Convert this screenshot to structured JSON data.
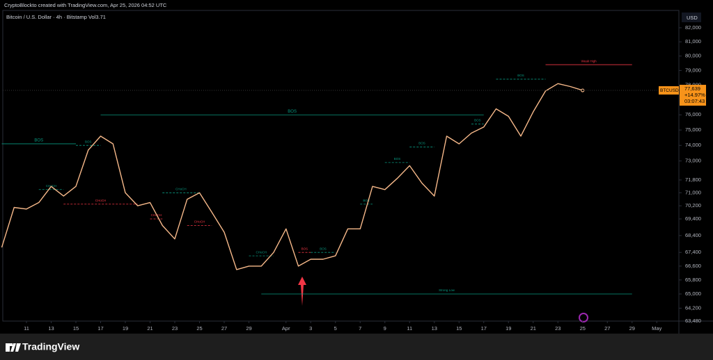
{
  "header": "CryptoBlockto created with TradingView.com, Apr 25, 2026 04:52 UTC",
  "brand": "TradingView",
  "chart_data": {
    "type": "line",
    "title": "Bitcoin / U.S. Dollar · 4h · Bitstamp  Vol3.71",
    "currency": "USD",
    "log_scale": true,
    "x": [
      "2026-03-09",
      "2026-03-10",
      "2026-03-11",
      "2026-03-12",
      "2026-03-13",
      "2026-03-14",
      "2026-03-15",
      "2026-03-16",
      "2026-03-17",
      "2026-03-18",
      "2026-03-19",
      "2026-03-20",
      "2026-03-21",
      "2026-03-22",
      "2026-03-23",
      "2026-03-24",
      "2026-03-25",
      "2026-03-26",
      "2026-03-27",
      "2026-03-28",
      "2026-03-29",
      "2026-03-30",
      "2026-03-31",
      "2026-04-01",
      "2026-04-02",
      "2026-04-03",
      "2026-04-04",
      "2026-04-05",
      "2026-04-06",
      "2026-04-07",
      "2026-04-08",
      "2026-04-09",
      "2026-04-10",
      "2026-04-11",
      "2026-04-12",
      "2026-04-13",
      "2026-04-14",
      "2026-04-15",
      "2026-04-16",
      "2026-04-17",
      "2026-04-18",
      "2026-04-19",
      "2026-04-20",
      "2026-04-21",
      "2026-04-22",
      "2026-04-23",
      "2026-04-24",
      "2026-04-25"
    ],
    "series": [
      {
        "name": "BTCUSD",
        "color": "#f7b98a",
        "values": [
          67700,
          70100,
          70000,
          70400,
          71400,
          70800,
          71400,
          73700,
          74600,
          74100,
          71000,
          70200,
          70400,
          69000,
          68200,
          70600,
          71000,
          69800,
          68600,
          66400,
          66600,
          66600,
          67400,
          68800,
          66600,
          67000,
          67000,
          67200,
          68800,
          68800,
          71400,
          71200,
          71900,
          72700,
          71600,
          70800,
          74600,
          74100,
          74800,
          75200,
          76400,
          75900,
          74600,
          76200,
          77600,
          78100,
          77900,
          77639
        ]
      }
    ],
    "last_price": {
      "value": 77639,
      "label": "77,639"
    },
    "change": "+14.97%",
    "countdown": "03:07:43",
    "xlim": [
      "2026-03-09",
      "2026-05-02"
    ],
    "xticks": [
      {
        "value": "2026-03-11",
        "label": "11"
      },
      {
        "value": "2026-03-13",
        "label": "13"
      },
      {
        "value": "2026-03-15",
        "label": "15"
      },
      {
        "value": "2026-03-17",
        "label": "17"
      },
      {
        "value": "2026-03-19",
        "label": "19"
      },
      {
        "value": "2026-03-21",
        "label": "21"
      },
      {
        "value": "2026-03-23",
        "label": "23"
      },
      {
        "value": "2026-03-25",
        "label": "25"
      },
      {
        "value": "2026-03-27",
        "label": "27"
      },
      {
        "value": "2026-03-29",
        "label": "29"
      },
      {
        "value": "2026-04-01",
        "label": "Apr"
      },
      {
        "value": "2026-04-03",
        "label": "3"
      },
      {
        "value": "2026-04-05",
        "label": "5"
      },
      {
        "value": "2026-04-07",
        "label": "7"
      },
      {
        "value": "2026-04-09",
        "label": "9"
      },
      {
        "value": "2026-04-11",
        "label": "11"
      },
      {
        "value": "2026-04-13",
        "label": "13"
      },
      {
        "value": "2026-04-15",
        "label": "15"
      },
      {
        "value": "2026-04-17",
        "label": "17"
      },
      {
        "value": "2026-04-19",
        "label": "19"
      },
      {
        "value": "2026-04-21",
        "label": "21"
      },
      {
        "value": "2026-04-23",
        "label": "23"
      },
      {
        "value": "2026-04-25",
        "label": "25"
      },
      {
        "value": "2026-04-27",
        "label": "27"
      },
      {
        "value": "2026-04-29",
        "label": "29"
      },
      {
        "value": "2026-05-01",
        "label": "May"
      }
    ],
    "ylim": [
      63480,
      83250
    ],
    "yticks": [
      {
        "value": 82000,
        "label": "82,000"
      },
      {
        "value": 81000,
        "label": "81,000"
      },
      {
        "value": 80000,
        "label": "80,000"
      },
      {
        "value": 79000,
        "label": "79,000"
      },
      {
        "value": 78000,
        "label": "78,000"
      },
      {
        "value": 76000,
        "label": "76,000"
      },
      {
        "value": 75000,
        "label": "75,000"
      },
      {
        "value": 74000,
        "label": "74,000"
      },
      {
        "value": 73000,
        "label": "73,000"
      },
      {
        "value": 71800,
        "label": "71,800"
      },
      {
        "value": 71000,
        "label": "71,000"
      },
      {
        "value": 70200,
        "label": "70,200"
      },
      {
        "value": 69400,
        "label": "69,400"
      },
      {
        "value": 68400,
        "label": "68,400"
      },
      {
        "value": 67400,
        "label": "67,400"
      },
      {
        "value": 66600,
        "label": "66,600"
      },
      {
        "value": 65800,
        "label": "65,800"
      },
      {
        "value": 65000,
        "label": "65,000"
      },
      {
        "value": 64200,
        "label": "64,200"
      },
      {
        "value": 63480,
        "label": "63,480"
      }
    ],
    "annotations": [
      {
        "label": "BOS",
        "value": 74100,
        "from": "2026-03-09",
        "to": "2026-03-15",
        "color": "#089981",
        "style": "solid"
      },
      {
        "label": "BOS",
        "value": 74000,
        "from": "2026-03-15",
        "to": "2026-03-17",
        "color": "#089981",
        "style": "dashed"
      },
      {
        "label": "CHoCH",
        "value": 71200,
        "from": "2026-03-12",
        "to": "2026-03-14",
        "color": "#089981",
        "style": "dashed"
      },
      {
        "label": "CHoCH",
        "value": 70300,
        "from": "2026-03-14",
        "to": "2026-03-20",
        "color": "#f23645",
        "style": "dashed"
      },
      {
        "label": "CHoCH",
        "value": 71000,
        "from": "2026-03-22",
        "to": "2026-03-25",
        "color": "#089981",
        "style": "dashed"
      },
      {
        "label": "CHoCH",
        "value": 69400,
        "from": "2026-03-21",
        "to": "2026-03-22",
        "color": "#f23645",
        "style": "dashed"
      },
      {
        "label": "CHoCH",
        "value": 69000,
        "from": "2026-03-24",
        "to": "2026-03-26",
        "color": "#f23645",
        "style": "dashed"
      },
      {
        "label": "BOS",
        "value": 76000,
        "from": "2026-03-17",
        "to": "2026-04-17",
        "color": "#089981",
        "style": "solid"
      },
      {
        "label": "CHoCH",
        "value": 67200,
        "from": "2026-03-29",
        "to": "2026-03-31",
        "color": "#089981",
        "style": "dashed"
      },
      {
        "label": "BOS",
        "value": 67400,
        "from": "2026-04-02",
        "to": "2026-04-03",
        "color": "#f23645",
        "style": "dashed"
      },
      {
        "label": "BOS",
        "value": 67400,
        "from": "2026-04-03",
        "to": "2026-04-05",
        "color": "#089981",
        "style": "dashed"
      },
      {
        "label": "BOS",
        "value": 70300,
        "from": "2026-04-07",
        "to": "2026-04-08",
        "color": "#089981",
        "style": "dashed"
      },
      {
        "label": "BOS",
        "value": 72900,
        "from": "2026-04-09",
        "to": "2026-04-11",
        "color": "#089981",
        "style": "dashed"
      },
      {
        "label": "BOS",
        "value": 73900,
        "from": "2026-04-11",
        "to": "2026-04-13",
        "color": "#089981",
        "style": "dashed"
      },
      {
        "label": "BOS",
        "value": 75400,
        "from": "2026-04-16",
        "to": "2026-04-17",
        "color": "#089981",
        "style": "dashed"
      },
      {
        "label": "BOS",
        "value": 78400,
        "from": "2026-04-18",
        "to": "2026-04-22",
        "color": "#089981",
        "style": "dashed"
      },
      {
        "label": "Weak High",
        "value": 79400,
        "from": "2026-04-22",
        "to": "2026-04-29",
        "color": "#f23645",
        "style": "solid"
      },
      {
        "label": "Strong Low",
        "value": 65000,
        "from": "2026-03-30",
        "to": "2026-04-29",
        "color": "#089981",
        "style": "solid"
      }
    ]
  }
}
